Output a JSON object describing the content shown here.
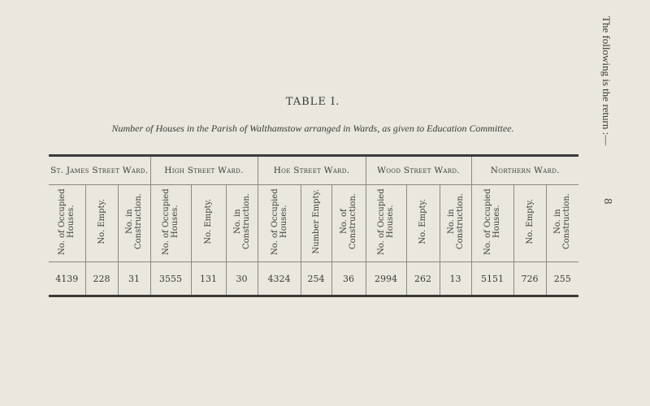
{
  "side_text": "The following is the return :—",
  "page_number": "8",
  "title": "TABLE I.",
  "caption": "Number of Houses in the Parish of Walthamstow arranged in Wards, as given to Education Committee.",
  "wards": [
    {
      "name": "St. James Street Ward.",
      "columns": [
        "No. of Occupied Houses.",
        "No. Empty.",
        "No. in Construction."
      ],
      "values": [
        "4139",
        "228",
        "31"
      ]
    },
    {
      "name": "High Street Ward.",
      "columns": [
        "No. of Occupied Houses.",
        "No. Empty.",
        "No. in Construction."
      ],
      "values": [
        "3555",
        "131",
        "30"
      ]
    },
    {
      "name": "Hoe Street Ward.",
      "columns": [
        "No. of Occupied Houses.",
        "Number Empty.",
        "No. of Construction."
      ],
      "values": [
        "4324",
        "254",
        "36"
      ]
    },
    {
      "name": "Wood Street Ward.",
      "columns": [
        "No. of Occupied Houses.",
        "No. Empty.",
        "No. in Construction."
      ],
      "values": [
        "2994",
        "262",
        "13"
      ]
    },
    {
      "name": "Northern Ward.",
      "columns": [
        "No. of Occupied Houses.",
        "No. Empty.",
        "No. in Construction."
      ],
      "values": [
        "5151",
        "726",
        "255"
      ]
    }
  ]
}
